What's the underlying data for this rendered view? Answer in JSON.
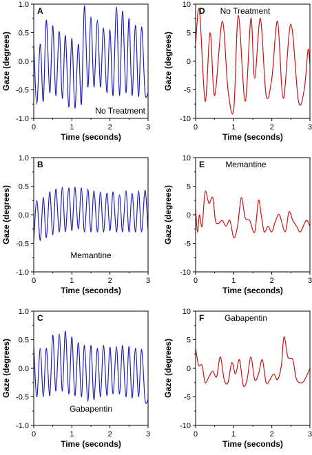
{
  "figure": {
    "background": "#ffffff"
  },
  "chart_data": [
    {
      "type": "line",
      "panel_letter": "A",
      "annotation": "No Treatment",
      "annotation_pos": "bottom-right",
      "xlabel": "Time (seconds)",
      "ylabel": "Gaze (degrees)",
      "xlim": [
        0,
        3
      ],
      "ylim": [
        -1,
        1
      ],
      "xticks": [
        "0",
        "1",
        "2",
        "3"
      ],
      "yticks": [
        "-1.0",
        "-0.5",
        "0.0",
        "0.5",
        "1.0"
      ],
      "color": "#1f1fb4",
      "series": [
        {
          "x": [
            0,
            0.08,
            0.17,
            0.25,
            0.33,
            0.42,
            0.5,
            0.58,
            0.67,
            0.75,
            0.83,
            0.92,
            1.0,
            1.08,
            1.17,
            1.25,
            1.33,
            1.42,
            1.5,
            1.58,
            1.67,
            1.75,
            1.83,
            1.92,
            2.0,
            2.08,
            2.17,
            2.25,
            2.33,
            2.42,
            2.5,
            2.58,
            2.67,
            2.75,
            2.83,
            2.92,
            3.0
          ],
          "y": [
            0.3,
            -0.75,
            0.3,
            -0.7,
            0.72,
            -0.55,
            0.62,
            -0.6,
            0.52,
            -0.65,
            0.45,
            -0.8,
            0.4,
            -0.82,
            0.3,
            -0.75,
            0.97,
            -0.45,
            0.78,
            -0.45,
            0.72,
            -0.45,
            0.58,
            -0.55,
            0.55,
            -0.6,
            0.95,
            -0.6,
            0.88,
            -0.55,
            0.75,
            -0.6,
            0.63,
            -0.62,
            0.6,
            -0.55,
            -0.55
          ]
        }
      ]
    },
    {
      "type": "line",
      "panel_letter": "B",
      "annotation": "Memantine",
      "annotation_pos": "bottom-center",
      "xlabel": "Time (seconds)",
      "ylabel": "Gaze (degrees)",
      "xlim": [
        0,
        3
      ],
      "ylim": [
        -1,
        1
      ],
      "xticks": [
        "0",
        "1",
        "2",
        "3"
      ],
      "yticks": [
        "-1.0",
        "-0.5",
        "0.0",
        "0.5",
        "1.0"
      ],
      "color": "#1f1fb4",
      "series": [
        {
          "x": [
            0,
            0.08,
            0.17,
            0.25,
            0.33,
            0.42,
            0.5,
            0.58,
            0.67,
            0.75,
            0.83,
            0.92,
            1.0,
            1.08,
            1.17,
            1.25,
            1.33,
            1.42,
            1.5,
            1.58,
            1.67,
            1.75,
            1.83,
            1.92,
            2.0,
            2.08,
            2.17,
            2.25,
            2.33,
            2.42,
            2.5,
            2.58,
            2.67,
            2.75,
            2.83,
            2.92,
            3.0
          ],
          "y": [
            -0.45,
            0.25,
            -0.45,
            0.3,
            -0.4,
            0.4,
            -0.35,
            0.45,
            -0.3,
            0.48,
            -0.3,
            0.47,
            -0.28,
            0.48,
            -0.25,
            0.47,
            -0.3,
            0.45,
            -0.3,
            0.42,
            -0.3,
            0.4,
            -0.3,
            0.38,
            -0.28,
            0.4,
            -0.3,
            0.35,
            -0.3,
            0.42,
            -0.3,
            0.38,
            -0.3,
            0.42,
            -0.3,
            0.43,
            -0.28
          ]
        }
      ]
    },
    {
      "type": "line",
      "panel_letter": "C",
      "annotation": "Gabapentin",
      "annotation_pos": "bottom-center",
      "xlabel": "Time (seconds)",
      "ylabel": "Gaze (degrees)",
      "xlim": [
        0,
        3
      ],
      "ylim": [
        -1,
        1
      ],
      "xticks": [
        "0",
        "1",
        "2",
        "3"
      ],
      "yticks": [
        "-1.0",
        "-0.5",
        "0.0",
        "0.5",
        "1.0"
      ],
      "color": "#1f1fb4",
      "series": [
        {
          "x": [
            0,
            0.08,
            0.17,
            0.25,
            0.33,
            0.42,
            0.5,
            0.58,
            0.67,
            0.75,
            0.83,
            0.92,
            1.0,
            1.08,
            1.17,
            1.25,
            1.33,
            1.42,
            1.5,
            1.58,
            1.67,
            1.75,
            1.83,
            1.92,
            2.0,
            2.08,
            2.17,
            2.25,
            2.33,
            2.42,
            2.5,
            2.58,
            2.67,
            2.75,
            2.83,
            2.92,
            3.0
          ],
          "y": [
            0.38,
            -0.5,
            0.35,
            -0.5,
            0.35,
            -0.48,
            0.58,
            -0.4,
            0.6,
            -0.4,
            0.65,
            -0.45,
            0.55,
            -0.48,
            0.45,
            -0.5,
            0.4,
            -0.58,
            0.4,
            -0.55,
            0.35,
            -0.5,
            0.4,
            -0.48,
            0.37,
            -0.45,
            0.38,
            -0.45,
            0.4,
            -0.5,
            0.38,
            -0.52,
            0.35,
            -0.5,
            0.33,
            -0.55,
            -0.55
          ]
        }
      ]
    },
    {
      "type": "line",
      "panel_letter": "D",
      "annotation": "No Treatment",
      "annotation_pos": "top-center",
      "xlabel": "Time (seconds)",
      "ylabel": "Gaze (degrees)",
      "xlim": [
        0,
        3
      ],
      "ylim": [
        -10,
        10
      ],
      "xticks": [
        "0",
        "1",
        "2",
        "3"
      ],
      "yticks": [
        "-10",
        "-5",
        "0",
        "5",
        "10"
      ],
      "color": "#cc1010",
      "series": [
        {
          "x": [
            0,
            0.1,
            0.25,
            0.38,
            0.5,
            0.7,
            0.85,
            1.0,
            1.12,
            1.3,
            1.45,
            1.55,
            1.7,
            1.85,
            2.0,
            2.15,
            2.3,
            2.5,
            2.7,
            2.85,
            2.95,
            3.0
          ],
          "y": [
            3,
            9,
            -7,
            5,
            -6,
            7,
            -5,
            -8.5,
            8,
            -7,
            7.5,
            -3,
            7.5,
            -6,
            -3,
            7,
            -6.5,
            6.5,
            -7,
            -5,
            2,
            -0.5
          ]
        }
      ]
    },
    {
      "type": "line",
      "panel_letter": "E",
      "annotation": "Memantine",
      "annotation_pos": "top-center",
      "xlabel": "Time (seconds)",
      "ylabel": "Gaze (degrees)",
      "xlim": [
        0,
        3
      ],
      "ylim": [
        -10,
        10
      ],
      "xticks": [
        "0",
        "1",
        "2",
        "3"
      ],
      "yticks": [
        "-10",
        "-5",
        "0",
        "5",
        "10"
      ],
      "color": "#cc1010",
      "series": [
        {
          "x": [
            0,
            0.05,
            0.1,
            0.17,
            0.25,
            0.35,
            0.45,
            0.52,
            0.6,
            0.7,
            0.8,
            0.9,
            1.0,
            1.1,
            1.2,
            1.3,
            1.42,
            1.55,
            1.65,
            1.72,
            1.8,
            1.9,
            2.0,
            2.1,
            2.2,
            2.35,
            2.45,
            2.55,
            2.65,
            2.75,
            2.9,
            3.0
          ],
          "y": [
            1,
            -3,
            0,
            -2,
            4,
            2,
            3,
            -1,
            -1.5,
            -1,
            -2,
            -1,
            -4,
            -2,
            3,
            -0.5,
            -1,
            -3,
            2.5,
            0,
            -3,
            -2,
            -3,
            -1,
            0,
            -3,
            0.5,
            -1,
            -2,
            -3,
            -1,
            -2
          ]
        }
      ]
    },
    {
      "type": "line",
      "panel_letter": "F",
      "annotation": "Gabapentin",
      "annotation_pos": "top-center",
      "xlabel": "Time (seconds)",
      "ylabel": "Gaze (degrees)",
      "xlim": [
        0,
        3
      ],
      "ylim": [
        -10,
        10
      ],
      "xticks": [
        "0",
        "1",
        "2",
        "3"
      ],
      "yticks": [
        "-10",
        "-5",
        "0",
        "5",
        "10"
      ],
      "color": "#cc1010",
      "series": [
        {
          "x": [
            0,
            0.08,
            0.17,
            0.25,
            0.35,
            0.45,
            0.55,
            0.65,
            0.75,
            0.85,
            0.95,
            1.05,
            1.15,
            1.25,
            1.35,
            1.45,
            1.55,
            1.65,
            1.75,
            1.85,
            1.95,
            2.05,
            2.15,
            2.25,
            2.32,
            2.42,
            2.55,
            2.65,
            2.8,
            2.9,
            3.0
          ],
          "y": [
            3.5,
            0.5,
            0.5,
            -2.5,
            -1.5,
            -0.5,
            -1.5,
            2,
            -2,
            -2.5,
            1,
            -1,
            1.5,
            -3,
            -2,
            2,
            -2,
            -1,
            1.5,
            -2.5,
            -2,
            -1,
            -2,
            0.5,
            5.5,
            2,
            1.5,
            -2,
            -2.5,
            -1.5,
            0
          ]
        }
      ]
    }
  ]
}
